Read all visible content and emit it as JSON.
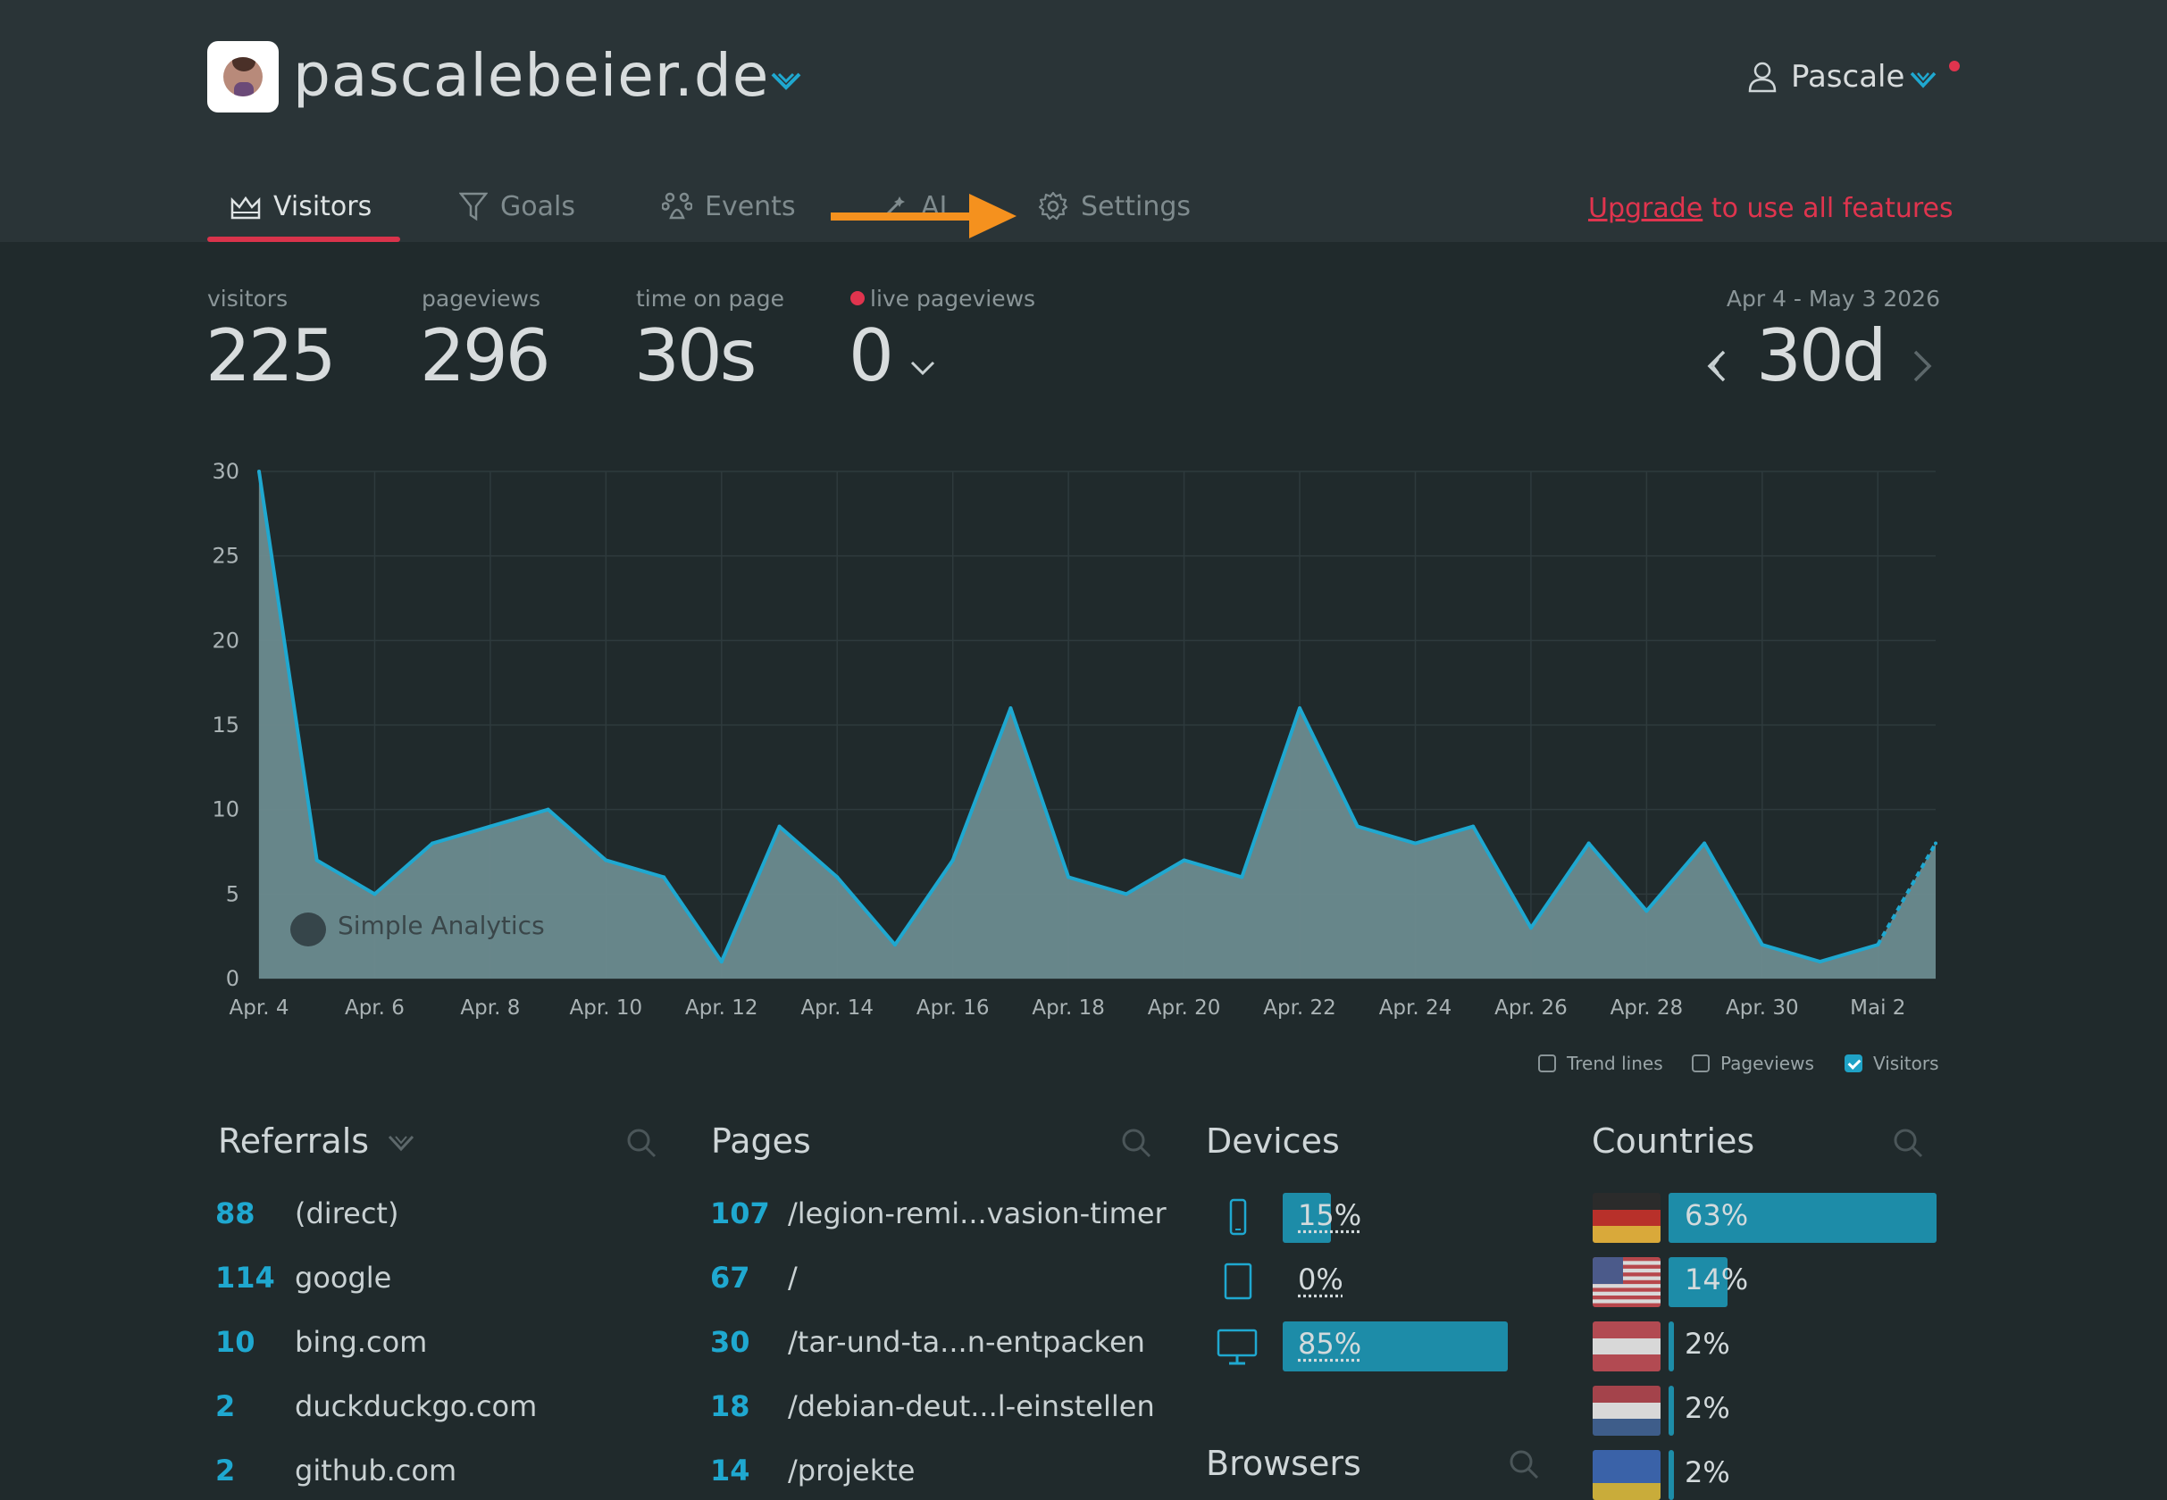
{
  "site": {
    "name": "pascalebeier.de"
  },
  "user": {
    "name": "Pascale"
  },
  "tabs": [
    {
      "label": "Visitors"
    },
    {
      "label": "Goals"
    },
    {
      "label": "Events"
    },
    {
      "label": "AI"
    },
    {
      "label": "Settings"
    }
  ],
  "upgrade": {
    "link": "Upgrade",
    "rest": "to use all features"
  },
  "stats": [
    {
      "label": "visitors",
      "value": "225"
    },
    {
      "label": "pageviews",
      "value": "296"
    },
    {
      "label": "time on page",
      "value": "30s"
    },
    {
      "label": "live pageviews",
      "value": "0"
    }
  ],
  "range": {
    "label": "Apr 4 - May 3 2026",
    "value": "30d"
  },
  "legend": [
    {
      "label": "Trend lines",
      "checked": false
    },
    {
      "label": "Pageviews",
      "checked": false
    },
    {
      "label": "Visitors",
      "checked": true
    }
  ],
  "watermark": "Simple Analytics",
  "chart_data": {
    "type": "area",
    "series": [
      {
        "name": "Visitors",
        "color": "#1fa8d0",
        "values": [
          30,
          7,
          5,
          8,
          9,
          10,
          7,
          6,
          1,
          9,
          6,
          2,
          7,
          16,
          6,
          5,
          7,
          6,
          16,
          9,
          8,
          9,
          3,
          8,
          4,
          8,
          2,
          1,
          2,
          8
        ]
      }
    ],
    "x": [
      "Apr. 4",
      "Apr. 5",
      "Apr. 6",
      "Apr. 7",
      "Apr. 8",
      "Apr. 9",
      "Apr. 10",
      "Apr. 11",
      "Apr. 12",
      "Apr. 13",
      "Apr. 14",
      "Apr. 15",
      "Apr. 16",
      "Apr. 17",
      "Apr. 18",
      "Apr. 19",
      "Apr. 20",
      "Apr. 21",
      "Apr. 22",
      "Apr. 23",
      "Apr. 24",
      "Apr. 25",
      "Apr. 26",
      "Apr. 27",
      "Apr. 28",
      "Apr. 29",
      "Apr. 30",
      "Mai 1",
      "Mai 2",
      "Mai 3"
    ],
    "xticks": [
      "Apr. 4",
      "Apr. 6",
      "Apr. 8",
      "Apr. 10",
      "Apr. 12",
      "Apr. 14",
      "Apr. 16",
      "Apr. 18",
      "Apr. 20",
      "Apr. 22",
      "Apr. 24",
      "Apr. 26",
      "Apr. 28",
      "Apr. 30",
      "Mai 2"
    ],
    "yticks": [
      0,
      5,
      10,
      15,
      20,
      25,
      30
    ],
    "ylim": [
      0,
      30
    ],
    "grid": true,
    "legend_position": "bottom-right"
  },
  "referrals": {
    "title": "Referrals",
    "rows": [
      {
        "count": "88",
        "name": "(direct)"
      },
      {
        "count": "114",
        "name": "google"
      },
      {
        "count": "10",
        "name": "bing.com"
      },
      {
        "count": "2",
        "name": "duckduckgo.com"
      },
      {
        "count": "2",
        "name": "github.com"
      }
    ]
  },
  "pages": {
    "title": "Pages",
    "rows": [
      {
        "count": "107",
        "name": "/legion-remi...vasion-timer"
      },
      {
        "count": "67",
        "name": "/"
      },
      {
        "count": "30",
        "name": "/tar-und-ta...n-entpacken"
      },
      {
        "count": "18",
        "name": "/debian-deut...l-einstellen"
      },
      {
        "count": "14",
        "name": "/projekte"
      }
    ]
  },
  "devices": {
    "title": "Devices",
    "rows": [
      {
        "icon": "phone-icon",
        "pct": "15%",
        "share": 0.15
      },
      {
        "icon": "tablet-icon",
        "pct": "0%",
        "share": 0.0
      },
      {
        "icon": "desktop-icon",
        "pct": "85%",
        "share": 0.85
      }
    ]
  },
  "browsers": {
    "title": "Browsers"
  },
  "countries": {
    "title": "Countries",
    "rows": [
      {
        "flag": [
          "#2b2b2b",
          "#b8302a",
          "#d9a93a"
        ],
        "pct": "63%",
        "share": 0.63
      },
      {
        "flag": "us",
        "pct": "14%",
        "share": 0.14
      },
      {
        "flag": [
          "#b24a52",
          "#d8d8d8",
          "#b24a52"
        ],
        "pct": "2%",
        "share": 0.02
      },
      {
        "flag": [
          "#a4434b",
          "#d8d8d8",
          "#3e5d8a"
        ],
        "pct": "2%",
        "share": 0.02
      },
      {
        "flag": [
          "#3a62a8",
          "#3a62a8",
          "#c9ac3a"
        ],
        "pct": "2%",
        "share": 0.02
      }
    ]
  }
}
